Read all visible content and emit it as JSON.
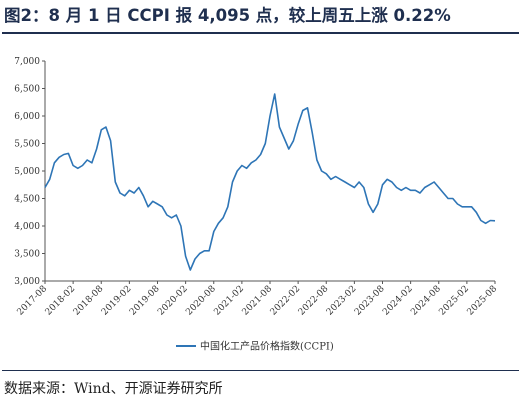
{
  "title": "图2：8 月 1 日 CCPI 报 4,095 点，较上周五上涨 0.22%",
  "source": "数据来源：Wind、开源证券研究所",
  "chart_data": {
    "type": "line",
    "title": "",
    "xlabel": "",
    "ylabel": "",
    "ylim": [
      3000,
      7000
    ],
    "yticks": [
      "3,000",
      "3,500",
      "4,000",
      "4,500",
      "5,000",
      "5,500",
      "6,000",
      "6,500",
      "7,000"
    ],
    "xticks": [
      "2017-08",
      "2018-02",
      "2018-08",
      "2019-02",
      "2019-08",
      "2020-02",
      "2020-08",
      "2021-02",
      "2021-08",
      "2022-02",
      "2022-08",
      "2023-02",
      "2023-08",
      "2024-02",
      "2024-08",
      "2025-02",
      "2025-08"
    ],
    "grid": false,
    "legend": "bottom-center",
    "color": "#2e75b6",
    "series": [
      {
        "name": "中国化工产品价格指数(CCPI)",
        "x": [
          "2017-08",
          "2017-09",
          "2017-10",
          "2017-11",
          "2017-12",
          "2018-01",
          "2018-02",
          "2018-03",
          "2018-04",
          "2018-05",
          "2018-06",
          "2018-07",
          "2018-08",
          "2018-09",
          "2018-10",
          "2018-11",
          "2018-12",
          "2019-01",
          "2019-02",
          "2019-03",
          "2019-04",
          "2019-05",
          "2019-06",
          "2019-07",
          "2019-08",
          "2019-09",
          "2019-10",
          "2019-11",
          "2019-12",
          "2020-01",
          "2020-02",
          "2020-03",
          "2020-04",
          "2020-05",
          "2020-06",
          "2020-07",
          "2020-08",
          "2020-09",
          "2020-10",
          "2020-11",
          "2020-12",
          "2021-01",
          "2021-02",
          "2021-03",
          "2021-04",
          "2021-05",
          "2021-06",
          "2021-07",
          "2021-08",
          "2021-09",
          "2021-10",
          "2021-11",
          "2021-12",
          "2022-01",
          "2022-02",
          "2022-03",
          "2022-04",
          "2022-05",
          "2022-06",
          "2022-07",
          "2022-08",
          "2022-09",
          "2022-10",
          "2022-11",
          "2022-12",
          "2023-01",
          "2023-02",
          "2023-03",
          "2023-04",
          "2023-05",
          "2023-06",
          "2023-07",
          "2023-08",
          "2023-09",
          "2023-10",
          "2023-11",
          "2023-12",
          "2024-01",
          "2024-02",
          "2024-03",
          "2024-04",
          "2024-05",
          "2024-06",
          "2024-07",
          "2024-08",
          "2024-09",
          "2024-10",
          "2024-11",
          "2024-12",
          "2025-01",
          "2025-02",
          "2025-03",
          "2025-04",
          "2025-05",
          "2025-06",
          "2025-07",
          "2025-08"
        ],
        "values": [
          4700,
          4850,
          5150,
          5250,
          5300,
          5320,
          5100,
          5050,
          5100,
          5200,
          5150,
          5400,
          5750,
          5800,
          5550,
          4800,
          4600,
          4550,
          4650,
          4600,
          4700,
          4550,
          4350,
          4450,
          4400,
          4350,
          4200,
          4150,
          4200,
          4000,
          3450,
          3200,
          3400,
          3500,
          3550,
          3550,
          3900,
          4050,
          4150,
          4350,
          4800,
          5000,
          5100,
          5050,
          5150,
          5200,
          5300,
          5500,
          6000,
          6400,
          5800,
          5600,
          5400,
          5550,
          5850,
          6100,
          6150,
          5700,
          5200,
          5000,
          4950,
          4850,
          4900,
          4850,
          4800,
          4750,
          4700,
          4800,
          4700,
          4400,
          4250,
          4400,
          4750,
          4850,
          4800,
          4700,
          4650,
          4700,
          4650,
          4650,
          4600,
          4700,
          4750,
          4800,
          4700,
          4600,
          4500,
          4500,
          4400,
          4350,
          4350,
          4350,
          4250,
          4100,
          4050,
          4100,
          4095
        ]
      }
    ]
  }
}
